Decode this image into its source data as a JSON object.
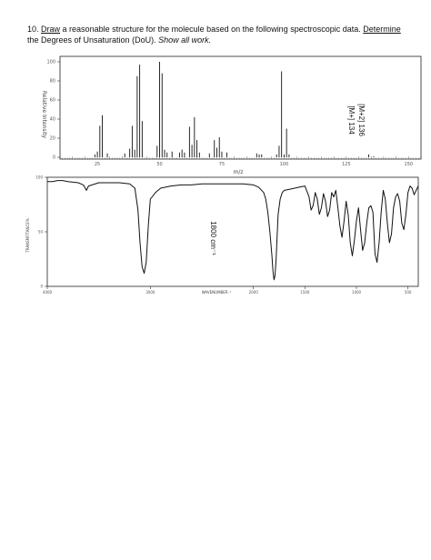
{
  "question": {
    "number": "10.",
    "verb1": "Draw",
    "text1": " a reasonable structure for the molecule based on the following spectroscopic data. ",
    "verb2": "Determine",
    "text2": " the Degrees of Unsaturation (DoU). ",
    "instruction": "Show all work."
  },
  "chart_data": [
    {
      "type": "bar",
      "xlabel": "m/z",
      "ylabel": "Relative Intensity",
      "xlim": [
        10,
        155
      ],
      "ylim": [
        0,
        100
      ],
      "xticks": [
        "25",
        "50",
        "75",
        "100",
        "125",
        "150"
      ],
      "yticks": [
        "0",
        "20",
        "40",
        "60",
        "80",
        "100"
      ],
      "peaks": [
        {
          "x": 24,
          "y": 3
        },
        {
          "x": 25,
          "y": 6
        },
        {
          "x": 26,
          "y": 33
        },
        {
          "x": 27,
          "y": 44
        },
        {
          "x": 29,
          "y": 4
        },
        {
          "x": 36,
          "y": 4
        },
        {
          "x": 38,
          "y": 9
        },
        {
          "x": 39,
          "y": 33
        },
        {
          "x": 40,
          "y": 8
        },
        {
          "x": 41,
          "y": 85
        },
        {
          "x": 42,
          "y": 97
        },
        {
          "x": 43,
          "y": 38
        },
        {
          "x": 49,
          "y": 12
        },
        {
          "x": 50,
          "y": 100
        },
        {
          "x": 51,
          "y": 88
        },
        {
          "x": 52,
          "y": 8
        },
        {
          "x": 53,
          "y": 5
        },
        {
          "x": 55,
          "y": 6
        },
        {
          "x": 58,
          "y": 5
        },
        {
          "x": 59,
          "y": 8
        },
        {
          "x": 60,
          "y": 5
        },
        {
          "x": 62,
          "y": 32
        },
        {
          "x": 63,
          "y": 13
        },
        {
          "x": 64,
          "y": 42
        },
        {
          "x": 65,
          "y": 18
        },
        {
          "x": 66,
          "y": 5
        },
        {
          "x": 70,
          "y": 4
        },
        {
          "x": 72,
          "y": 18
        },
        {
          "x": 73,
          "y": 10
        },
        {
          "x": 74,
          "y": 21
        },
        {
          "x": 75,
          "y": 6
        },
        {
          "x": 77,
          "y": 5
        },
        {
          "x": 89,
          "y": 4
        },
        {
          "x": 90,
          "y": 3
        },
        {
          "x": 91,
          "y": 3
        },
        {
          "x": 97,
          "y": 3
        },
        {
          "x": 98,
          "y": 12
        },
        {
          "x": 99,
          "y": 90
        },
        {
          "x": 100,
          "y": 3
        },
        {
          "x": 101,
          "y": 30
        },
        {
          "x": 102,
          "y": 3
        },
        {
          "x": 134,
          "y": 3
        },
        {
          "x": 136,
          "y": 1
        }
      ],
      "annotations": [
        "[M+] 134",
        "[M+2] 136"
      ]
    },
    {
      "type": "line",
      "xlabel": "WAVENUMBER⁻¹",
      "ylabel": "TRANSMITTANCE%",
      "xlim": [
        4000,
        400
      ],
      "ylim": [
        0,
        100
      ],
      "xticks": [
        "4000",
        "3000",
        "2000",
        "1500",
        "1000",
        "500"
      ],
      "yticks": [
        "0",
        "50",
        "100"
      ],
      "series": [
        {
          "x": [
            4000,
            3950,
            3900,
            3850,
            3800,
            3700,
            3650,
            3620,
            3600,
            3500,
            3400,
            3300,
            3200,
            3150,
            3120,
            3100,
            3080,
            3060,
            3040,
            3020,
            3000,
            2950,
            2900,
            2800,
            2700,
            2600,
            2500,
            2400,
            2300,
            2200,
            2100,
            2000,
            1950,
            1900,
            1880,
            1860,
            1840,
            1820,
            1810,
            1800,
            1790,
            1780,
            1770,
            1760,
            1740,
            1720,
            1700,
            1650,
            1600,
            1550,
            1500,
            1460,
            1440,
            1420,
            1400,
            1380,
            1360,
            1340,
            1320,
            1300,
            1280,
            1260,
            1240,
            1220,
            1200,
            1180,
            1160,
            1140,
            1120,
            1100,
            1080,
            1060,
            1040,
            1020,
            1000,
            980,
            960,
            940,
            920,
            900,
            880,
            860,
            840,
            820,
            800,
            780,
            760,
            740,
            720,
            700,
            680,
            660,
            640,
            620,
            600,
            580,
            560,
            540,
            520,
            500,
            480,
            460,
            440,
            420,
            400
          ],
          "y": [
            96,
            96,
            97,
            97,
            96,
            95,
            93,
            88,
            92,
            95,
            95,
            95,
            94,
            90,
            70,
            40,
            18,
            12,
            22,
            55,
            80,
            86,
            90,
            92,
            93,
            93,
            94,
            94,
            94,
            94,
            94,
            93,
            91,
            86,
            80,
            68,
            50,
            28,
            14,
            6,
            10,
            24,
            45,
            66,
            80,
            86,
            88,
            89,
            90,
            91,
            92,
            82,
            70,
            74,
            86,
            80,
            66,
            72,
            85,
            78,
            64,
            70,
            86,
            82,
            88,
            72,
            55,
            45,
            60,
            78,
            66,
            40,
            28,
            42,
            60,
            72,
            52,
            33,
            40,
            58,
            72,
            74,
            68,
            30,
            22,
            40,
            68,
            88,
            80,
            58,
            40,
            48,
            72,
            82,
            85,
            78,
            58,
            52,
            66,
            86,
            92,
            90,
            84,
            88,
            92
          ]
        }
      ],
      "annotations": [
        "1800 cm⁻¹"
      ]
    }
  ]
}
